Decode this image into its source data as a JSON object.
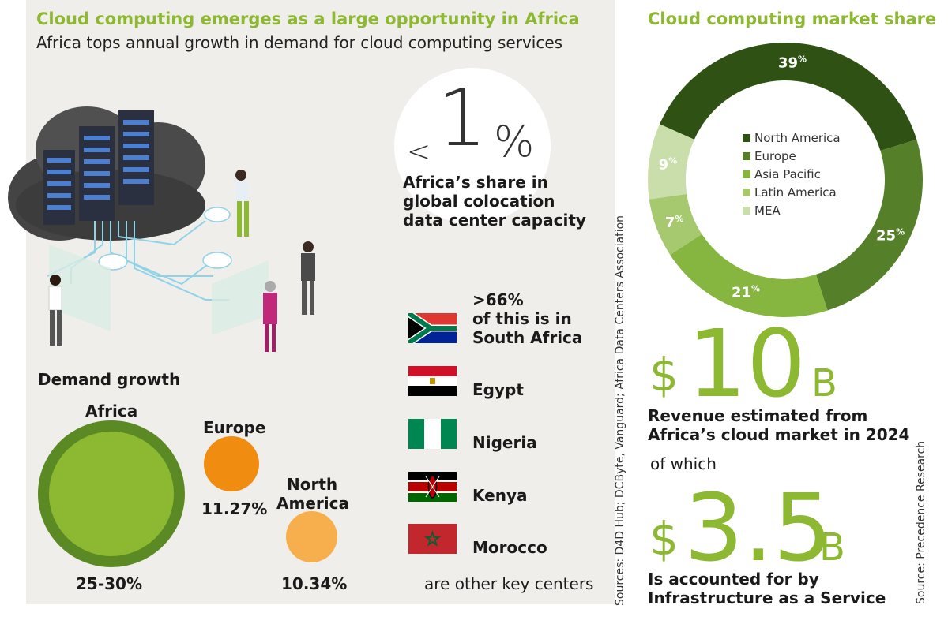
{
  "header": {
    "title": "Cloud computing emerges as a large opportunity in Africa",
    "subtitle": "Africa tops annual growth in demand for cloud computing services"
  },
  "colocation": {
    "lt": "<",
    "value": "1",
    "pct": "%",
    "label_lines": [
      "Africa’s share in",
      "global colocation",
      "data center capacity"
    ]
  },
  "south_africa": {
    "value": ">66%",
    "line2": "of this is in",
    "line3": "South Africa"
  },
  "countries": [
    {
      "name": "Egypt",
      "flag": "egypt-flag-icon"
    },
    {
      "name": "Nigeria",
      "flag": "nigeria-flag-icon"
    },
    {
      "name": "Kenya",
      "flag": "kenya-flag-icon"
    },
    {
      "name": "Morocco",
      "flag": "morocco-flag-icon"
    }
  ],
  "key_centers_note": "are other key centers",
  "left_source": "Sources: D4D Hub; DCByte, Vanguard; Africa Data Centers Association",
  "demand_growth": {
    "title": "Demand growth",
    "regions": [
      {
        "name": "Africa",
        "value_label": "25-30%",
        "color": "#8cb832",
        "ring": "#5b8a25"
      },
      {
        "name": "Europe",
        "value_label": "11.27%",
        "color": "#f08c10"
      },
      {
        "name_lines": [
          "North",
          "America"
        ],
        "value_label": "10.34%",
        "color": "#f7ae4c"
      }
    ]
  },
  "market_share_title": "Cloud computing market share",
  "chart_data": {
    "type": "pie",
    "title": "Cloud computing market share",
    "categories": [
      "North America",
      "Europe",
      "Asia Pacific",
      "Latin America",
      "MEA"
    ],
    "values": [
      39,
      25,
      21,
      7,
      9
    ],
    "unit": "%",
    "colors": [
      "#2f5214",
      "#567f2a",
      "#86b63f",
      "#a6c970",
      "#c9deaa"
    ],
    "legend_placement": "center"
  },
  "revenue": {
    "currency": "$",
    "value": "10",
    "unit": "B",
    "line1": "Revenue estimated from",
    "line2": "Africa’s cloud market in 2024"
  },
  "of_which": "of which",
  "iaas": {
    "currency": "$",
    "value": "3.5",
    "unit": "B",
    "line1": "Is accounted for by",
    "line2": "Infrastructure as a Service"
  },
  "right_source": "Source: Precedence Research"
}
